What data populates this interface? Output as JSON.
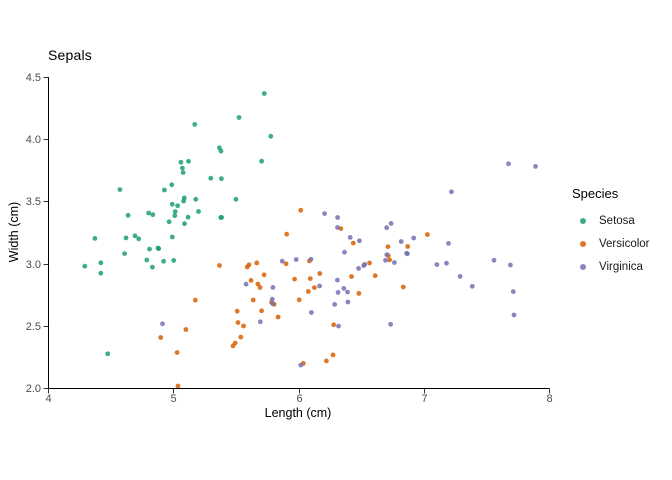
{
  "title": "Sepals",
  "chart_data": {
    "type": "scatter",
    "title": "Sepals",
    "xlabel": "Length (cm)",
    "ylabel": "Width (cm)",
    "xlim": [
      4,
      8
    ],
    "ylim": [
      2.0,
      4.5
    ],
    "xticks": [
      4,
      5,
      6,
      7,
      8
    ],
    "xtick_labels": [
      "4",
      "5",
      "6",
      "7",
      "8"
    ],
    "yticks": [
      2.0,
      2.5,
      3.0,
      3.5,
      4.0,
      4.5
    ],
    "ytick_labels": [
      "2.0",
      "2.5",
      "3.0",
      "3.5",
      "4.0",
      "4.5"
    ],
    "grid": false,
    "theme": "classic",
    "legend_title": "Species",
    "legend_position": "right",
    "point_opacity": 0.85,
    "jitter": 0.08,
    "axis_color": "#000000",
    "tick_label_color": "#4d4d4d",
    "series": [
      {
        "name": "Setosa",
        "color": "#1b9e77",
        "points": [
          [
            5.1,
            3.5
          ],
          [
            4.9,
            3.0
          ],
          [
            4.7,
            3.2
          ],
          [
            4.6,
            3.1
          ],
          [
            5.0,
            3.6
          ],
          [
            5.4,
            3.9
          ],
          [
            4.6,
            3.4
          ],
          [
            5.0,
            3.4
          ],
          [
            4.4,
            2.9
          ],
          [
            4.9,
            3.1
          ],
          [
            5.4,
            3.7
          ],
          [
            4.8,
            3.4
          ],
          [
            4.8,
            3.0
          ],
          [
            4.3,
            3.0
          ],
          [
            5.8,
            4.0
          ],
          [
            5.7,
            4.4
          ],
          [
            5.4,
            3.9
          ],
          [
            5.1,
            3.5
          ],
          [
            5.7,
            3.8
          ],
          [
            5.1,
            3.8
          ],
          [
            5.4,
            3.4
          ],
          [
            5.1,
            3.7
          ],
          [
            4.6,
            3.6
          ],
          [
            5.1,
            3.3
          ],
          [
            4.8,
            3.4
          ],
          [
            5.0,
            3.0
          ],
          [
            5.0,
            3.4
          ],
          [
            5.2,
            3.5
          ],
          [
            5.2,
            3.4
          ],
          [
            4.7,
            3.2
          ],
          [
            4.8,
            3.1
          ],
          [
            5.4,
            3.4
          ],
          [
            5.2,
            4.1
          ],
          [
            5.5,
            4.2
          ],
          [
            4.9,
            3.1
          ],
          [
            5.0,
            3.2
          ],
          [
            5.5,
            3.5
          ],
          [
            4.9,
            3.6
          ],
          [
            4.4,
            3.0
          ],
          [
            5.1,
            3.4
          ],
          [
            5.0,
            3.5
          ],
          [
            4.5,
            2.3
          ],
          [
            4.4,
            3.2
          ],
          [
            5.0,
            3.5
          ],
          [
            5.1,
            3.8
          ],
          [
            4.8,
            3.0
          ],
          [
            5.1,
            3.8
          ],
          [
            4.6,
            3.2
          ],
          [
            5.3,
            3.7
          ],
          [
            5.0,
            3.3
          ]
        ]
      },
      {
        "name": "Versicolor",
        "color": "#d95f02",
        "points": [
          [
            7.0,
            3.2
          ],
          [
            6.4,
            3.2
          ],
          [
            6.9,
            3.1
          ],
          [
            5.5,
            2.3
          ],
          [
            6.5,
            2.8
          ],
          [
            5.7,
            2.8
          ],
          [
            6.3,
            3.3
          ],
          [
            4.9,
            2.4
          ],
          [
            6.6,
            2.9
          ],
          [
            5.2,
            2.7
          ],
          [
            5.0,
            2.0
          ],
          [
            5.9,
            3.0
          ],
          [
            6.0,
            2.2
          ],
          [
            6.1,
            2.9
          ],
          [
            5.6,
            2.9
          ],
          [
            6.7,
            3.1
          ],
          [
            5.6,
            3.0
          ],
          [
            5.8,
            2.7
          ],
          [
            6.2,
            2.2
          ],
          [
            5.6,
            2.5
          ],
          [
            5.9,
            3.2
          ],
          [
            6.1,
            2.8
          ],
          [
            6.3,
            2.5
          ],
          [
            6.1,
            2.8
          ],
          [
            6.4,
            2.9
          ],
          [
            6.6,
            3.0
          ],
          [
            6.8,
            2.8
          ],
          [
            6.7,
            3.0
          ],
          [
            6.0,
            2.9
          ],
          [
            5.7,
            2.6
          ],
          [
            5.5,
            2.4
          ],
          [
            5.5,
            2.4
          ],
          [
            5.8,
            2.7
          ],
          [
            6.0,
            2.7
          ],
          [
            5.4,
            3.0
          ],
          [
            6.0,
            3.4
          ],
          [
            6.7,
            3.1
          ],
          [
            6.3,
            2.3
          ],
          [
            5.6,
            3.0
          ],
          [
            5.5,
            2.5
          ],
          [
            5.5,
            2.6
          ],
          [
            6.1,
            3.0
          ],
          [
            5.8,
            2.6
          ],
          [
            5.0,
            2.3
          ],
          [
            5.6,
            2.7
          ],
          [
            5.7,
            3.0
          ],
          [
            5.7,
            2.9
          ],
          [
            6.2,
            2.9
          ],
          [
            5.1,
            2.5
          ],
          [
            5.7,
            2.8
          ]
        ]
      },
      {
        "name": "Virginica",
        "color": "#7570b3",
        "points": [
          [
            6.3,
            3.3
          ],
          [
            5.8,
            2.7
          ],
          [
            7.1,
            3.0
          ],
          [
            6.3,
            2.9
          ],
          [
            6.5,
            3.0
          ],
          [
            7.6,
            3.0
          ],
          [
            4.9,
            2.5
          ],
          [
            7.3,
            2.9
          ],
          [
            6.7,
            2.5
          ],
          [
            7.2,
            3.6
          ],
          [
            6.5,
            3.2
          ],
          [
            6.4,
            2.7
          ],
          [
            6.8,
            3.0
          ],
          [
            5.7,
            2.5
          ],
          [
            5.8,
            2.8
          ],
          [
            6.4,
            3.2
          ],
          [
            6.5,
            3.0
          ],
          [
            7.7,
            3.8
          ],
          [
            7.7,
            2.6
          ],
          [
            6.0,
            2.2
          ],
          [
            6.9,
            3.2
          ],
          [
            5.6,
            2.8
          ],
          [
            7.7,
            2.8
          ],
          [
            6.3,
            2.7
          ],
          [
            6.7,
            3.3
          ],
          [
            7.2,
            3.2
          ],
          [
            6.2,
            2.8
          ],
          [
            6.1,
            3.0
          ],
          [
            6.4,
            2.8
          ],
          [
            7.2,
            3.0
          ],
          [
            7.4,
            2.8
          ],
          [
            7.9,
            3.8
          ],
          [
            6.4,
            2.8
          ],
          [
            6.3,
            2.8
          ],
          [
            6.1,
            2.6
          ],
          [
            7.7,
            3.0
          ],
          [
            6.3,
            3.4
          ],
          [
            6.4,
            3.1
          ],
          [
            6.0,
            3.0
          ],
          [
            6.9,
            3.1
          ],
          [
            6.7,
            3.1
          ],
          [
            6.9,
            3.1
          ],
          [
            5.8,
            2.7
          ],
          [
            6.8,
            3.2
          ],
          [
            6.7,
            3.3
          ],
          [
            6.7,
            3.0
          ],
          [
            6.3,
            2.5
          ],
          [
            6.5,
            3.0
          ],
          [
            6.2,
            3.4
          ],
          [
            5.9,
            3.0
          ]
        ]
      }
    ]
  }
}
